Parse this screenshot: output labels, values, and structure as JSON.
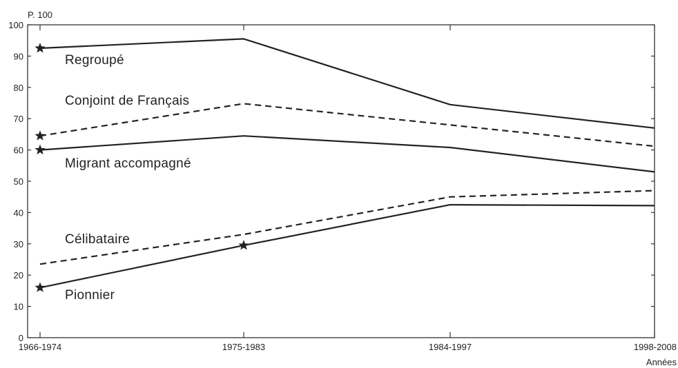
{
  "chart_data": {
    "type": "line",
    "title": "",
    "ylabel": "P. 100",
    "xlabel": "Années",
    "ylim": [
      0,
      100
    ],
    "yticks": [
      0,
      10,
      20,
      30,
      40,
      50,
      60,
      70,
      80,
      90,
      100
    ],
    "categories": [
      "1966-1974",
      "1975-1983",
      "1984-1997",
      "1998-2008"
    ],
    "grid": false,
    "series": [
      {
        "name": "Regroupé",
        "style": "solid",
        "values": [
          92.5,
          95.5,
          74.5,
          67
        ],
        "markers": [
          true,
          false,
          false,
          false
        ]
      },
      {
        "name": "Conjoint de Français",
        "style": "dashed",
        "values": [
          64.5,
          74.8,
          68,
          61.2
        ],
        "markers": [
          true,
          false,
          false,
          false
        ]
      },
      {
        "name": "Migrant accompagné",
        "style": "solid",
        "values": [
          60,
          64.5,
          60.8,
          53
        ],
        "markers": [
          true,
          false,
          false,
          false
        ]
      },
      {
        "name": "Célibataire",
        "style": "dashed",
        "values": [
          23.5,
          33,
          45,
          47
        ],
        "markers": [
          false,
          false,
          false,
          false
        ]
      },
      {
        "name": "Pionnier",
        "style": "solid",
        "values": [
          16,
          29.5,
          42.5,
          42.2
        ],
        "markers": [
          true,
          true,
          false,
          false
        ]
      }
    ],
    "colors": {
      "line": "#222222",
      "axis": "#333333"
    }
  }
}
